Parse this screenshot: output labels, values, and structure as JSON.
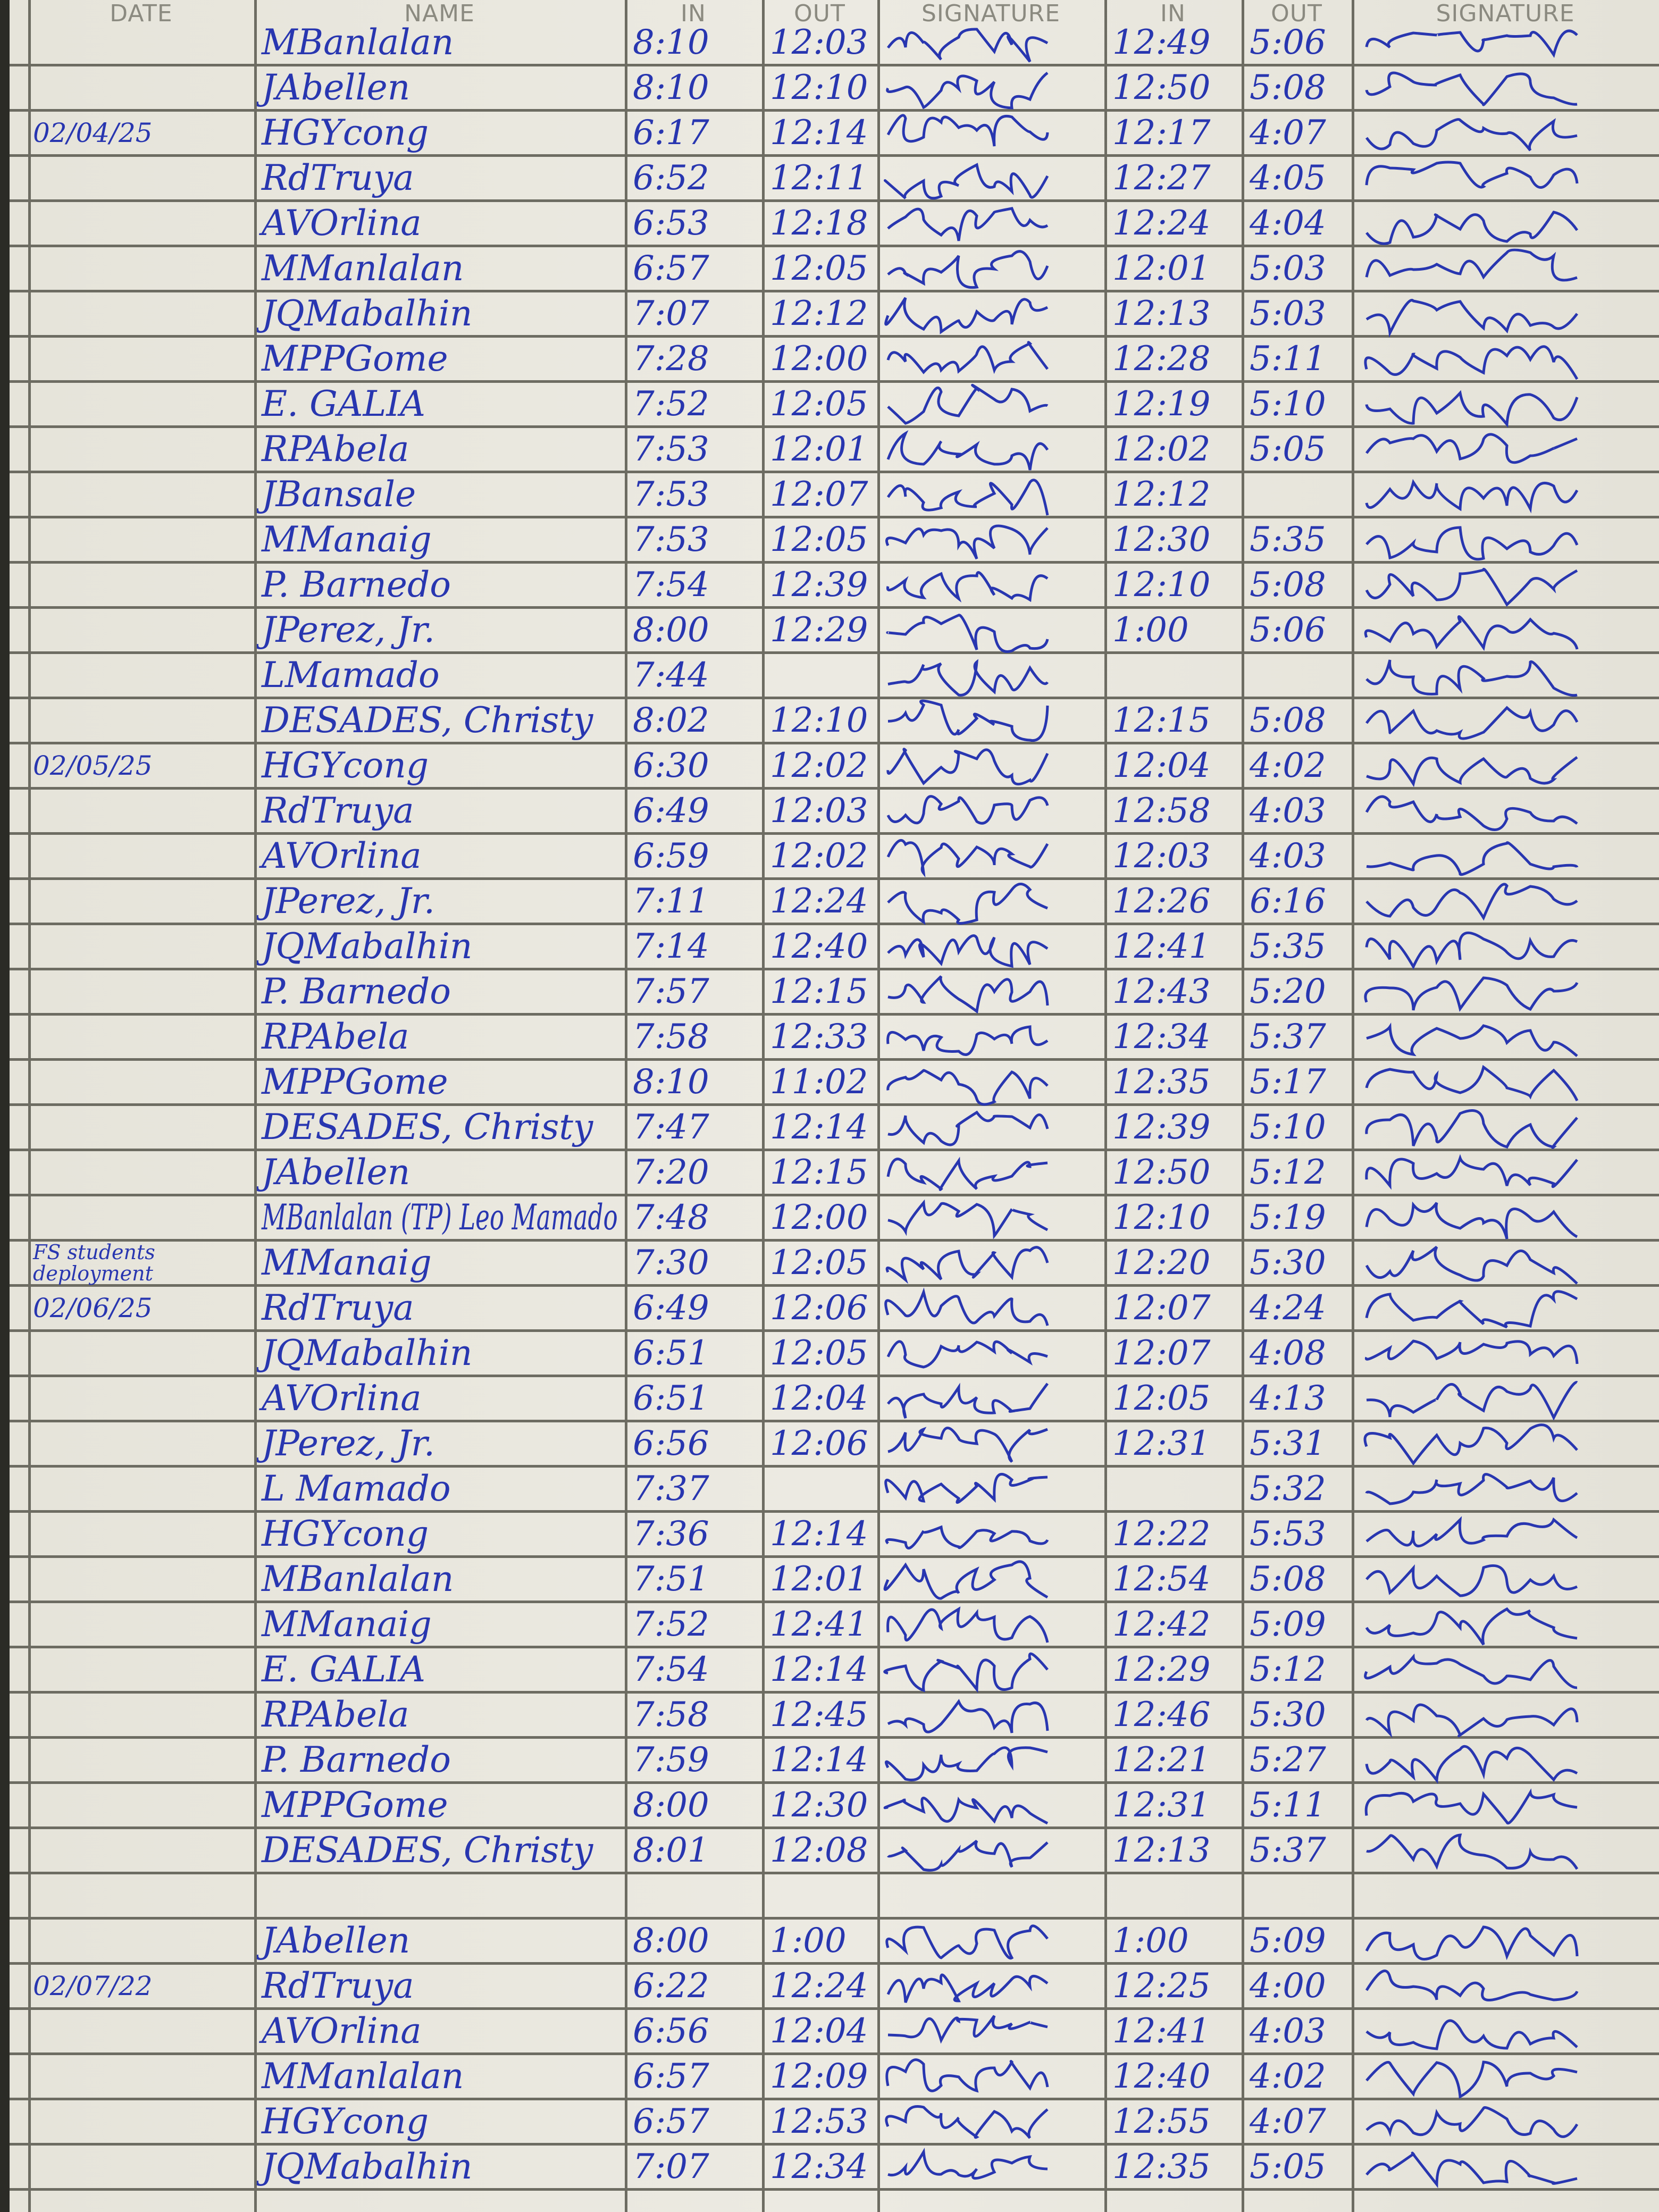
{
  "header": {
    "date": "DATE",
    "name": "NAME",
    "am_in": "IN",
    "am_out": "OUT",
    "am_signature": "SIGNATURE",
    "pm_in": "IN",
    "pm_out": "OUT",
    "pm_signature": "SIGNATURE"
  },
  "ink_color": "#2836b0",
  "rows": [
    {
      "date": "",
      "name": "MBanlalan",
      "am_in": "8:10",
      "am_out": "12:03",
      "pm_in": "12:49",
      "pm_out": "5:06"
    },
    {
      "date": "",
      "name": "JAbellen",
      "am_in": "8:10",
      "am_out": "12:10",
      "pm_in": "12:50",
      "pm_out": "5:08"
    },
    {
      "date": "02/04/25",
      "name": "HGYcong",
      "am_in": "6:17",
      "am_out": "12:14",
      "pm_in": "12:17",
      "pm_out": "4:07"
    },
    {
      "date": "",
      "name": "RdTruya",
      "am_in": "6:52",
      "am_out": "12:11",
      "pm_in": "12:27",
      "pm_out": "4:05"
    },
    {
      "date": "",
      "name": "AVOrlina",
      "am_in": "6:53",
      "am_out": "12:18",
      "pm_in": "12:24",
      "pm_out": "4:04"
    },
    {
      "date": "",
      "name": "MManlalan",
      "am_in": "6:57",
      "am_out": "12:05",
      "pm_in": "12:01",
      "pm_out": "5:03"
    },
    {
      "date": "",
      "name": "JQMabalhin",
      "am_in": "7:07",
      "am_out": "12:12",
      "pm_in": "12:13",
      "pm_out": "5:03"
    },
    {
      "date": "",
      "name": "MPPGome",
      "am_in": "7:28",
      "am_out": "12:00",
      "pm_in": "12:28",
      "pm_out": "5:11"
    },
    {
      "date": "",
      "name": "E. GALIA",
      "am_in": "7:52",
      "am_out": "12:05",
      "pm_in": "12:19",
      "pm_out": "5:10"
    },
    {
      "date": "",
      "name": "RPAbela",
      "am_in": "7:53",
      "am_out": "12:01",
      "pm_in": "12:02",
      "pm_out": "5:05"
    },
    {
      "date": "",
      "name": "JBansale",
      "am_in": "7:53",
      "am_out": "12:07",
      "pm_in": "12:12",
      "pm_out": ""
    },
    {
      "date": "",
      "name": "MManaig",
      "am_in": "7:53",
      "am_out": "12:05",
      "pm_in": "12:30",
      "pm_out": "5:35"
    },
    {
      "date": "",
      "name": "P. Barnedo",
      "am_in": "7:54",
      "am_out": "12:39",
      "pm_in": "12:10",
      "pm_out": "5:08"
    },
    {
      "date": "",
      "name": "JPerez, Jr.",
      "am_in": "8:00",
      "am_out": "12:29",
      "pm_in": "1:00",
      "pm_out": "5:06"
    },
    {
      "date": "",
      "name": "LMamado",
      "am_in": "7:44",
      "am_out": "",
      "pm_in": "",
      "pm_out": ""
    },
    {
      "date": "",
      "name": "DESADES, Christy",
      "am_in": "8:02",
      "am_out": "12:10",
      "pm_in": "12:15",
      "pm_out": "5:08"
    },
    {
      "date": "02/05/25",
      "name": "HGYcong",
      "am_in": "6:30",
      "am_out": "12:02",
      "pm_in": "12:04",
      "pm_out": "4:02"
    },
    {
      "date": "",
      "name": "RdTruya",
      "am_in": "6:49",
      "am_out": "12:03",
      "pm_in": "12:58",
      "pm_out": "4:03"
    },
    {
      "date": "",
      "name": "AVOrlina",
      "am_in": "6:59",
      "am_out": "12:02",
      "pm_in": "12:03",
      "pm_out": "4:03"
    },
    {
      "date": "",
      "name": "JPerez, Jr.",
      "am_in": "7:11",
      "am_out": "12:24",
      "pm_in": "12:26",
      "pm_out": "6:16"
    },
    {
      "date": "",
      "name": "JQMabalhin",
      "am_in": "7:14",
      "am_out": "12:40",
      "pm_in": "12:41",
      "pm_out": "5:35"
    },
    {
      "date": "",
      "name": "P. Barnedo",
      "am_in": "7:57",
      "am_out": "12:15",
      "pm_in": "12:43",
      "pm_out": "5:20"
    },
    {
      "date": "",
      "name": "RPAbela",
      "am_in": "7:58",
      "am_out": "12:33",
      "pm_in": "12:34",
      "pm_out": "5:37"
    },
    {
      "date": "",
      "name": "MPPGome",
      "am_in": "8:10",
      "am_out": "11:02",
      "pm_in": "12:35",
      "pm_out": "5:17"
    },
    {
      "date": "",
      "name": "DESADES, Christy",
      "am_in": "7:47",
      "am_out": "12:14",
      "pm_in": "12:39",
      "pm_out": "5:10"
    },
    {
      "date": "",
      "name": "JAbellen",
      "am_in": "7:20",
      "am_out": "12:15",
      "pm_in": "12:50",
      "pm_out": "5:12"
    },
    {
      "date": "",
      "name": "MBanlalan (TP) Leo Mamado",
      "am_in": "7:48",
      "am_out": "12:00",
      "pm_in": "12:10",
      "pm_out": "5:19"
    },
    {
      "date": "FS students deployment",
      "name": "MManaig",
      "am_in": "7:30",
      "am_out": "12:05",
      "pm_in": "12:20",
      "pm_out": "5:30"
    },
    {
      "date": "02/06/25",
      "name": "RdTruya",
      "am_in": "6:49",
      "am_out": "12:06",
      "pm_in": "12:07",
      "pm_out": "4:24"
    },
    {
      "date": "",
      "name": "JQMabalhin",
      "am_in": "6:51",
      "am_out": "12:05",
      "pm_in": "12:07",
      "pm_out": "4:08"
    },
    {
      "date": "",
      "name": "AVOrlina",
      "am_in": "6:51",
      "am_out": "12:04",
      "pm_in": "12:05",
      "pm_out": "4:13"
    },
    {
      "date": "",
      "name": "JPerez, Jr.",
      "am_in": "6:56",
      "am_out": "12:06",
      "pm_in": "12:31",
      "pm_out": "5:31"
    },
    {
      "date": "",
      "name": "L Mamado",
      "am_in": "7:37",
      "am_out": "",
      "pm_in": "",
      "pm_out": "5:32"
    },
    {
      "date": "",
      "name": "HGYcong",
      "am_in": "7:36",
      "am_out": "12:14",
      "pm_in": "12:22",
      "pm_out": "5:53"
    },
    {
      "date": "",
      "name": "MBanlalan",
      "am_in": "7:51",
      "am_out": "12:01",
      "pm_in": "12:54",
      "pm_out": "5:08"
    },
    {
      "date": "",
      "name": "MManaig",
      "am_in": "7:52",
      "am_out": "12:41",
      "pm_in": "12:42",
      "pm_out": "5:09"
    },
    {
      "date": "",
      "name": "E. GALIA",
      "am_in": "7:54",
      "am_out": "12:14",
      "pm_in": "12:29",
      "pm_out": "5:12"
    },
    {
      "date": "",
      "name": "RPAbela",
      "am_in": "7:58",
      "am_out": "12:45",
      "pm_in": "12:46",
      "pm_out": "5:30"
    },
    {
      "date": "",
      "name": "P. Barnedo",
      "am_in": "7:59",
      "am_out": "12:14",
      "pm_in": "12:21",
      "pm_out": "5:27"
    },
    {
      "date": "",
      "name": "MPPGome",
      "am_in": "8:00",
      "am_out": "12:30",
      "pm_in": "12:31",
      "pm_out": "5:11"
    },
    {
      "date": "",
      "name": "DESADES, Christy",
      "am_in": "8:01",
      "am_out": "12:08",
      "pm_in": "12:13",
      "pm_out": "5:37"
    },
    {
      "date": "",
      "name": "",
      "am_in": "",
      "am_out": "",
      "pm_in": "",
      "pm_out": ""
    },
    {
      "date": "",
      "name": "JAbellen",
      "am_in": "8:00",
      "am_out": "1:00",
      "pm_in": "1:00",
      "pm_out": "5:09"
    },
    {
      "date": "02/07/22",
      "name": "RdTruya",
      "am_in": "6:22",
      "am_out": "12:24",
      "pm_in": "12:25",
      "pm_out": "4:00"
    },
    {
      "date": "",
      "name": "AVOrlina",
      "am_in": "6:56",
      "am_out": "12:04",
      "pm_in": "12:41",
      "pm_out": "4:03"
    },
    {
      "date": "",
      "name": "MManlalan",
      "am_in": "6:57",
      "am_out": "12:09",
      "pm_in": "12:40",
      "pm_out": "4:02"
    },
    {
      "date": "",
      "name": "HGYcong",
      "am_in": "6:57",
      "am_out": "12:53",
      "pm_in": "12:55",
      "pm_out": "4:07"
    },
    {
      "date": "",
      "name": "JQMabalhin",
      "am_in": "7:07",
      "am_out": "12:34",
      "pm_in": "12:35",
      "pm_out": "5:05"
    }
  ]
}
